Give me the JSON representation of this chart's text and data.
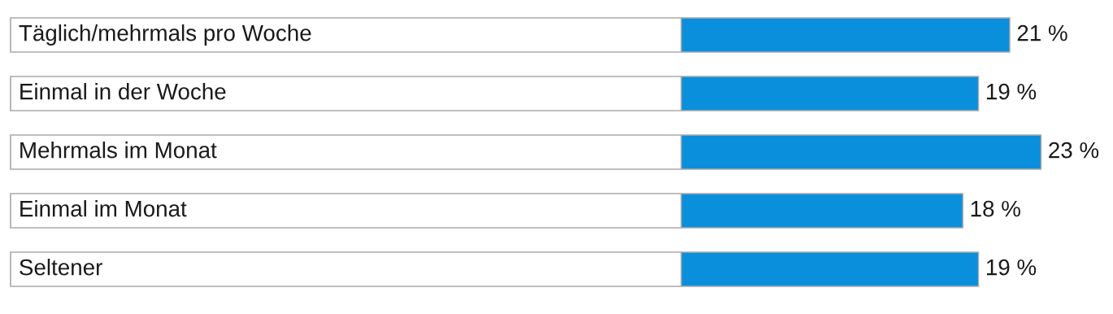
{
  "chart_data": {
    "type": "bar",
    "orientation": "horizontal",
    "categories": [
      "Täglich/mehrmals pro Woche",
      "Einmal in der Woche",
      "Mehrmals im Monat",
      "Einmal im Monat",
      "Seltener"
    ],
    "values": [
      21,
      19,
      23,
      18,
      19
    ],
    "value_labels": [
      "21 %",
      "19 %",
      "23 %",
      "18 %",
      "19 %"
    ],
    "color": "#0a8fdc"
  }
}
